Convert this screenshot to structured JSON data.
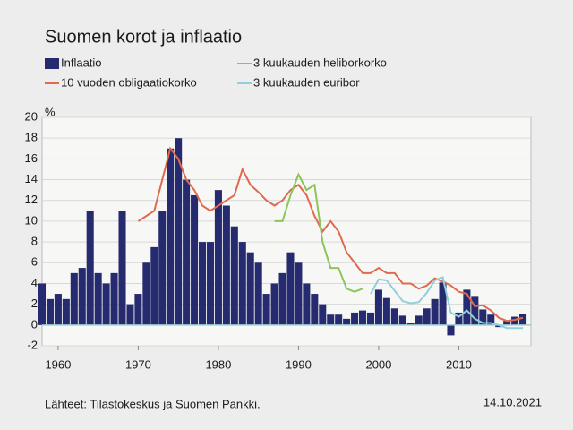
{
  "chart_data": {
    "type": "bar",
    "title": "Suomen korot ja inflaatio",
    "y_label": "%",
    "source": "Lähteet: Tilastokeskus ja Suomen Pankki.",
    "date": "14.10.2021",
    "xlim": [
      1958,
      2019
    ],
    "xticks": [
      1960,
      1970,
      1980,
      1990,
      2000,
      2010
    ],
    "ylim": [
      -2,
      20
    ],
    "yticks": [
      -2,
      0,
      2,
      4,
      6,
      8,
      10,
      12,
      14,
      16,
      18,
      20
    ],
    "grid": true,
    "series": [
      {
        "name": "Inflaatio",
        "type": "bar",
        "color": "#262a6e",
        "x": [
          1958,
          1959,
          1960,
          1961,
          1962,
          1963,
          1964,
          1965,
          1966,
          1967,
          1968,
          1969,
          1970,
          1971,
          1972,
          1973,
          1974,
          1975,
          1976,
          1977,
          1978,
          1979,
          1980,
          1981,
          1982,
          1983,
          1984,
          1985,
          1986,
          1987,
          1988,
          1989,
          1990,
          1991,
          1992,
          1993,
          1994,
          1995,
          1996,
          1997,
          1998,
          1999,
          2000,
          2001,
          2002,
          2003,
          2004,
          2005,
          2006,
          2007,
          2008,
          2009,
          2010,
          2011,
          2012,
          2013,
          2014,
          2015,
          2016,
          2017,
          2018
        ],
        "values": [
          4,
          2.5,
          3,
          2.5,
          5,
          5.5,
          11,
          5,
          4,
          5,
          11,
          2,
          3,
          6,
          7.5,
          11,
          17,
          18,
          14,
          12.5,
          8,
          8,
          13,
          11.5,
          9.5,
          8,
          7,
          6,
          3,
          4,
          5,
          7,
          6,
          4,
          3,
          2,
          1,
          1,
          0.6,
          1.2,
          1.4,
          1.2,
          3.4,
          2.6,
          1.6,
          0.9,
          0.2,
          0.9,
          1.6,
          2.5,
          4.1,
          -1,
          1.2,
          3.4,
          2.8,
          1.5,
          1,
          -0.2,
          0.4,
          0.8,
          1.1
        ]
      },
      {
        "name": "10 vuoden obligaatiokorko",
        "type": "line",
        "color": "#e06a4e",
        "x": [
          1970,
          1971,
          1972,
          1973,
          1974,
          1975,
          1976,
          1977,
          1978,
          1979,
          1980,
          1981,
          1982,
          1983,
          1984,
          1985,
          1986,
          1987,
          1988,
          1989,
          1990,
          1991,
          1992,
          1993,
          1994,
          1995,
          1996,
          1997,
          1998,
          1999,
          2000,
          2001,
          2002,
          2003,
          2004,
          2005,
          2006,
          2007,
          2008,
          2009,
          2010,
          2011,
          2012,
          2013,
          2014,
          2015,
          2016,
          2017,
          2018
        ],
        "values": [
          10,
          10.5,
          11,
          14,
          17,
          16,
          14,
          13,
          11.5,
          11,
          11.5,
          12,
          12.5,
          15,
          13.5,
          12.8,
          12,
          11.5,
          12,
          13,
          13.5,
          12.5,
          10.5,
          9,
          10,
          9,
          7,
          6,
          5,
          5,
          5.5,
          5,
          5,
          4,
          4,
          3.5,
          3.8,
          4.5,
          4.2,
          3.8,
          3.2,
          3,
          1.8,
          1.9,
          1.4,
          0.7,
          0.4,
          0.5,
          0.7
        ]
      },
      {
        "name": "3 kuukauden heliborkorko",
        "type": "line",
        "color": "#8dc55a",
        "x": [
          1987,
          1988,
          1989,
          1990,
          1991,
          1992,
          1993,
          1994,
          1995,
          1996,
          1997,
          1998
        ],
        "values": [
          10,
          10,
          12.5,
          14.5,
          13,
          13.5,
          8,
          5.5,
          5.5,
          3.5,
          3.2,
          3.5
        ]
      },
      {
        "name": "3 kuukauden euribor",
        "type": "line",
        "color": "#8fd0dc",
        "x": [
          1999,
          2000,
          2001,
          2002,
          2003,
          2004,
          2005,
          2006,
          2007,
          2008,
          2009,
          2010,
          2011,
          2012,
          2013,
          2014,
          2015,
          2016,
          2017,
          2018
        ],
        "values": [
          3,
          4.4,
          4.3,
          3.3,
          2.3,
          2.1,
          2.2,
          3.1,
          4.3,
          4.6,
          1.2,
          0.8,
          1.4,
          0.6,
          0.2,
          0.2,
          0,
          -0.3,
          -0.3,
          -0.3
        ]
      }
    ]
  }
}
